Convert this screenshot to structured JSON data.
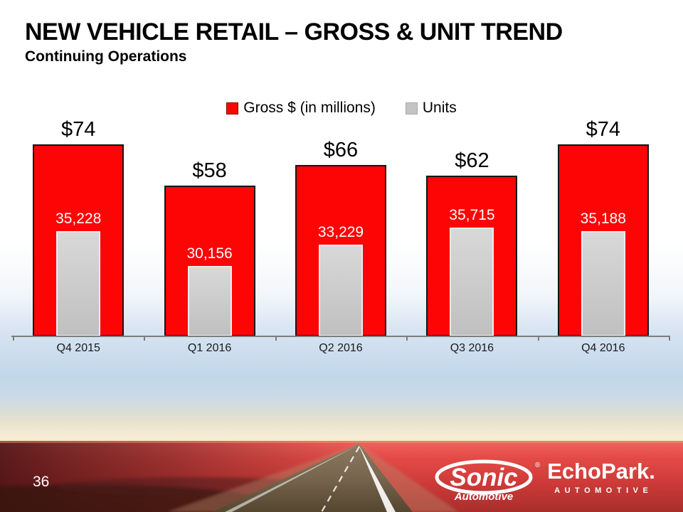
{
  "slide": {
    "title": "NEW VEHICLE RETAIL – GROSS & UNIT TREND",
    "subtitle": "Continuing Operations",
    "page_number": "36"
  },
  "legend": {
    "items": [
      {
        "label": "Gross $ (in millions)",
        "color": "#fe0505",
        "border": "#8b0000"
      },
      {
        "label": "Units",
        "color": "#c4c4c4",
        "border": "#aaaaaa"
      }
    ]
  },
  "chart_data": {
    "type": "bar",
    "title": "New Vehicle Retail – Gross & Unit Trend (Continuing Operations)",
    "categories": [
      "Q4 2015",
      "Q1 2016",
      "Q2 2016",
      "Q3 2016",
      "Q4 2016"
    ],
    "series": [
      {
        "name": "Gross $ (in millions)",
        "axis": "primary",
        "color": "#fe0505",
        "values": [
          74,
          58,
          66,
          62,
          74
        ],
        "data_labels": [
          "$74",
          "$58",
          "$66",
          "$62",
          "$74"
        ]
      },
      {
        "name": "Units",
        "axis": "secondary",
        "color": "#c4c4c4",
        "values": [
          35228,
          30156,
          33229,
          35715,
          35188
        ],
        "data_labels": [
          "35,228",
          "30,156",
          "33,229",
          "35,715",
          "35,188"
        ]
      }
    ],
    "primary_axis": {
      "min": 0,
      "max": 80,
      "visible": false
    },
    "secondary_axis": {
      "min": 20000,
      "max": 50000,
      "visible": false
    },
    "grid": false,
    "legend_position": "top"
  },
  "footer": {
    "sonic": {
      "name": "Sonic",
      "sub": "Automotive",
      "reg": "®"
    },
    "echopark": {
      "name": "EchoPark.",
      "sub": "AUTOMOTIVE"
    }
  }
}
